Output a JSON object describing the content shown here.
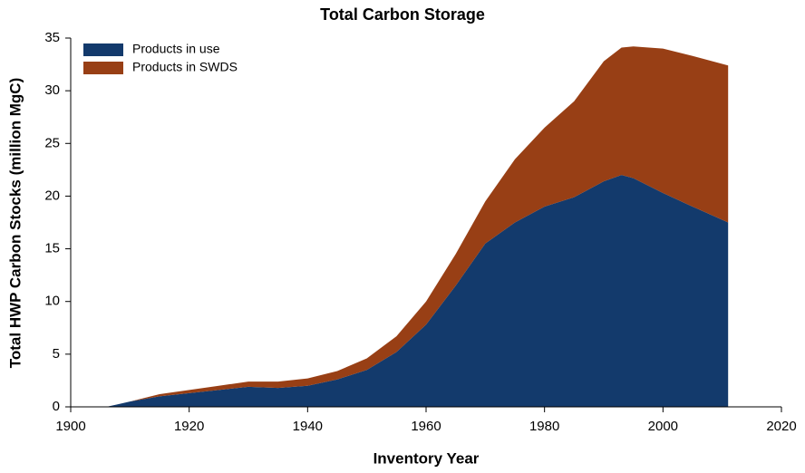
{
  "chart_data": {
    "type": "stacked-area",
    "title": "Total Carbon Storage",
    "x_label": "Inventory Year",
    "y_label": "Total HWP Carbon Stocks (million MgC)",
    "x": [
      1906,
      1910,
      1915,
      1920,
      1925,
      1930,
      1935,
      1940,
      1945,
      1950,
      1955,
      1960,
      1965,
      1970,
      1975,
      1980,
      1985,
      1990,
      1993,
      1995,
      2000,
      2005,
      2011
    ],
    "series": [
      {
        "name": "Products in use",
        "color": "#133a6c",
        "values": [
          0,
          0.5,
          1.0,
          1.3,
          1.6,
          1.9,
          1.8,
          2.0,
          2.6,
          3.5,
          5.2,
          7.8,
          11.5,
          15.5,
          17.5,
          19.0,
          19.9,
          21.4,
          22.0,
          21.7,
          20.3,
          19.0,
          17.5
        ]
      },
      {
        "name": "Products in SWDS",
        "color": "#983f15",
        "values": [
          0,
          0,
          0.2,
          0.3,
          0.4,
          0.5,
          0.6,
          0.7,
          0.8,
          1.1,
          1.5,
          2.2,
          3.0,
          4.0,
          6.0,
          7.5,
          9.1,
          11.4,
          12.1,
          12.5,
          13.7,
          14.3,
          14.9
        ]
      }
    ],
    "xlim": [
      1900,
      2020
    ],
    "xticks": [
      1900,
      1920,
      1940,
      1960,
      1980,
      2000,
      2020
    ],
    "ylim": [
      0,
      35
    ],
    "yticks": [
      0,
      5,
      10,
      15,
      20,
      25,
      30,
      35
    ],
    "legend": "upper-left",
    "grid": false
  }
}
